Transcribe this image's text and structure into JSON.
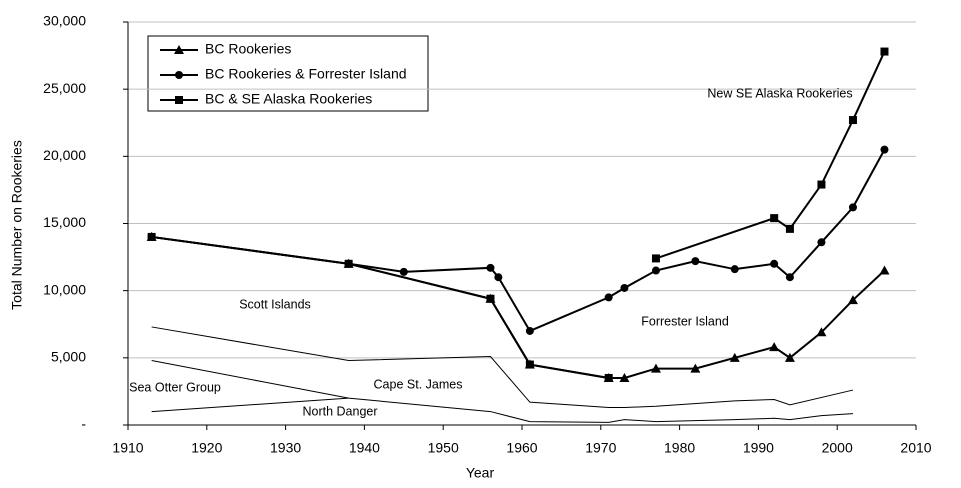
{
  "chart_data": {
    "type": "line",
    "x_label": "Year",
    "y_label": "Total Number on Rookeries",
    "xlim": [
      1910,
      2010
    ],
    "xticks": [
      1910,
      1920,
      1930,
      1940,
      1950,
      1960,
      1970,
      1980,
      1990,
      2000,
      2010
    ],
    "ylim": [
      0,
      30000
    ],
    "yticks": [
      {
        "value": 0,
        "label": "-"
      },
      {
        "value": 5000,
        "label": "5,000"
      },
      {
        "value": 10000,
        "label": "10,000"
      },
      {
        "value": 15000,
        "label": "15,000"
      },
      {
        "value": 20000,
        "label": "20,000"
      },
      {
        "value": 25000,
        "label": "25,000"
      },
      {
        "value": 30000,
        "label": "30,000"
      }
    ],
    "grid": true,
    "legend": "top-left",
    "series": [
      {
        "name": "BC Rookeries",
        "marker": "triangle",
        "color": "#000000",
        "width": 2,
        "x": [
          1913,
          1938,
          1956,
          1961,
          1971,
          1973,
          1977,
          1982,
          1987,
          1992,
          1994,
          1998,
          2002,
          2006
        ],
        "values": [
          14000,
          12000,
          9400,
          4500,
          3500,
          3500,
          4200,
          4200,
          5000,
          5800,
          5000,
          6900,
          9300,
          11500
        ]
      },
      {
        "name": "BC Rookeries & Forrester Island",
        "marker": "circle",
        "color": "#000000",
        "width": 2,
        "x": [
          1913,
          1938,
          1945,
          1956,
          1957,
          1961,
          1971,
          1973,
          1977,
          1982,
          1987,
          1992,
          1994,
          1998,
          2002,
          2006
        ],
        "values": [
          14000,
          12000,
          11400,
          11700,
          11000,
          7000,
          9500,
          10200,
          11500,
          12200,
          11600,
          12000,
          11000,
          13600,
          16200,
          20500
        ]
      },
      {
        "name": "BC & SE Alaska Rookeries",
        "marker": "square",
        "color": "#000000",
        "width": 2,
        "x": [
          1913,
          1938,
          1956,
          1961,
          1971,
          1973,
          1977,
          1992,
          1994,
          1998,
          2002,
          2006
        ],
        "values": [
          14000,
          12000,
          9400,
          4500,
          3500,
          null,
          12400,
          15400,
          14600,
          17900,
          22700,
          27800
        ]
      },
      {
        "marker": "none",
        "color": "#000000",
        "width": 1,
        "x": [
          1913,
          1938,
          1956,
          1961,
          1971,
          1973,
          1977,
          1987,
          1992,
          1994,
          2002
        ],
        "values": [
          7300,
          4800,
          5100,
          1700,
          1300,
          1300,
          1400,
          1800,
          1900,
          1500,
          2600
        ]
      },
      {
        "marker": "none",
        "color": "#000000",
        "width": 1,
        "x": [
          1913,
          1938,
          1956,
          1961,
          1971,
          1973,
          1977,
          1987,
          1992,
          1994,
          1998,
          2002
        ],
        "values": [
          4800,
          2000,
          1000,
          250,
          200,
          400,
          250,
          400,
          500,
          400,
          700,
          850
        ]
      },
      {
        "marker": "none",
        "color": "#000000",
        "width": 1,
        "x": [
          1913,
          1938
        ],
        "values": [
          1000,
          2000
        ]
      }
    ],
    "annotations": [
      "New SE Alaska Rookeries",
      "Scott Islands",
      "Forrester Island",
      "Cape St. James",
      "Sea Otter Group",
      "North Danger"
    ]
  }
}
